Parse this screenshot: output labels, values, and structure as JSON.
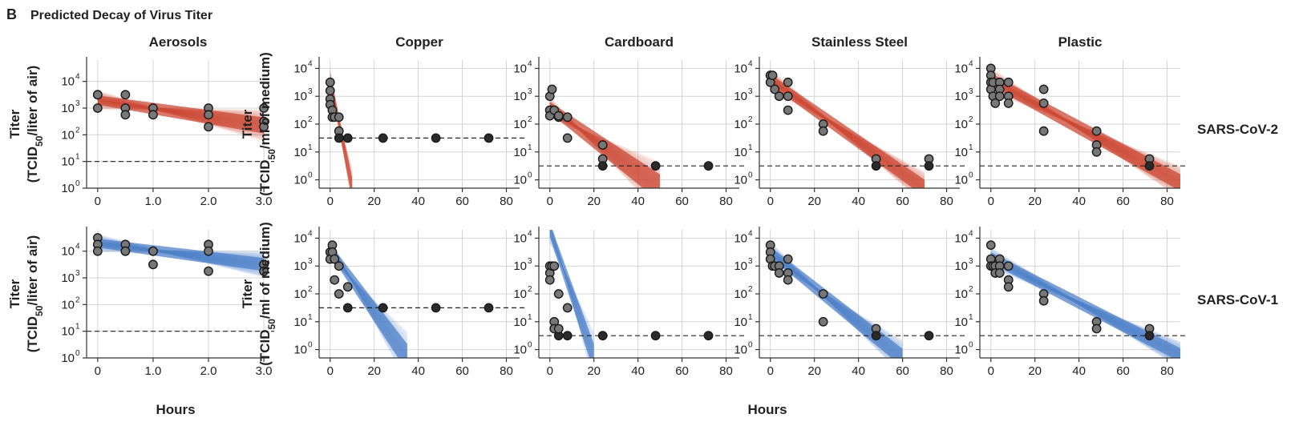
{
  "figure": {
    "panel_letter": "B",
    "title": "Predicted Decay of Virus Titer",
    "x_label": "Hours",
    "colors": {
      "SARS-CoV-2": "#cc4a35",
      "SARS-CoV-1": "#4f82c8",
      "point_fill": "#777777",
      "point_stroke": "#1a1a1a"
    }
  },
  "chart_data": [
    {
      "type": "scatter",
      "row": 0,
      "col": 0,
      "title": "Aerosols",
      "series_name": "SARS-CoV-2",
      "ylabel": "Titer\n(TCID50/liter of air)",
      "xlim": [
        -0.2,
        3.1
      ],
      "xticks": [
        0,
        1,
        2,
        3
      ],
      "xticklabels": [
        "0",
        "1.0",
        "2.0",
        "3.0"
      ],
      "yscale": "log",
      "ylim": [
        0,
        4.8
      ],
      "yticklabels": [
        "10^0",
        "10^1",
        "10^2",
        "10^3",
        "10^4"
      ],
      "lod": 1.0,
      "fit_band": {
        "x": [
          0,
          3
        ],
        "log10_center": [
          3.3,
          2.35
        ],
        "log10_halfwidth": [
          0.32,
          0.55
        ]
      },
      "points": [
        [
          0,
          3.5
        ],
        [
          0,
          3.5
        ],
        [
          0,
          3.0
        ],
        [
          0.5,
          3.5
        ],
        [
          0.5,
          3.0
        ],
        [
          0.5,
          2.75
        ],
        [
          1,
          3.0
        ],
        [
          1,
          2.75
        ],
        [
          2,
          3.0
        ],
        [
          2,
          2.75
        ],
        [
          2,
          2.3
        ],
        [
          3,
          3.0
        ],
        [
          3,
          2.5
        ],
        [
          3,
          2.3
        ]
      ]
    },
    {
      "type": "scatter",
      "row": 0,
      "col": 1,
      "title": "Copper",
      "series_name": "SARS-CoV-2",
      "ylabel": "Titer\n(TCID50/ml of medium)",
      "xlim": [
        -5,
        86
      ],
      "xticks": [
        0,
        20,
        40,
        60,
        80
      ],
      "xticklabels": [
        "0",
        "20",
        "40",
        "60",
        "80"
      ],
      "yscale": "log",
      "ylim": [
        -0.3,
        4.3
      ],
      "yticklabels": [
        "10^0",
        "10^1",
        "10^2",
        "10^3",
        "10^4"
      ],
      "lod": 1.5,
      "fit_band": {
        "x": [
          0,
          10
        ],
        "log10_center": [
          3.6,
          -0.3
        ],
        "log10_halfwidth": [
          0.4,
          0.7
        ]
      },
      "points": [
        [
          0,
          3.5
        ],
        [
          0,
          3.2
        ],
        [
          0,
          2.9
        ],
        [
          0,
          2.7
        ],
        [
          1,
          2.5
        ],
        [
          1,
          2.25
        ],
        [
          2,
          2.25
        ],
        [
          4,
          2.25
        ],
        [
          4,
          1.75
        ],
        [
          4,
          1.5
        ],
        [
          8,
          1.5
        ],
        [
          24,
          1.5
        ],
        [
          48,
          1.5
        ],
        [
          72,
          1.5
        ]
      ]
    },
    {
      "type": "scatter",
      "row": 0,
      "col": 2,
      "title": "Cardboard",
      "series_name": "SARS-CoV-2",
      "ylabel": "",
      "xlim": [
        -5,
        86
      ],
      "xticks": [
        0,
        20,
        40,
        60,
        80
      ],
      "xticklabels": [
        "0",
        "20",
        "40",
        "60",
        "80"
      ],
      "yscale": "log",
      "ylim": [
        -0.3,
        4.3
      ],
      "yticklabels": [
        "10^0",
        "10^1",
        "10^2",
        "10^3",
        "10^4"
      ],
      "lod": 0.5,
      "fit_band": {
        "x": [
          0,
          50
        ],
        "log10_center": [
          2.6,
          -0.3
        ],
        "log10_halfwidth": [
          0.35,
          0.9
        ]
      },
      "points": [
        [
          0,
          3.0
        ],
        [
          0,
          2.5
        ],
        [
          0,
          2.5
        ],
        [
          0,
          2.3
        ],
        [
          1,
          3.25
        ],
        [
          2,
          2.5
        ],
        [
          4,
          2.25
        ],
        [
          4,
          2.3
        ],
        [
          8,
          2.25
        ],
        [
          8,
          1.5
        ],
        [
          24,
          1.25
        ],
        [
          24,
          0.75
        ],
        [
          24,
          0.5
        ],
        [
          48,
          0.5
        ],
        [
          72,
          0.5
        ]
      ]
    },
    {
      "type": "scatter",
      "row": 0,
      "col": 3,
      "title": "Stainless Steel",
      "series_name": "SARS-CoV-2",
      "ylabel": "",
      "xlim": [
        -5,
        86
      ],
      "xticks": [
        0,
        20,
        40,
        60,
        80
      ],
      "xticklabels": [
        "0",
        "20",
        "40",
        "60",
        "80"
      ],
      "yscale": "log",
      "ylim": [
        -0.3,
        4.3
      ],
      "yticklabels": [
        "10^0",
        "10^1",
        "10^2",
        "10^3",
        "10^4"
      ],
      "lod": 0.5,
      "fit_band": {
        "x": [
          0,
          70
        ],
        "log10_center": [
          3.6,
          -0.3
        ],
        "log10_halfwidth": [
          0.35,
          0.55
        ]
      },
      "points": [
        [
          0,
          3.75
        ],
        [
          0,
          3.75
        ],
        [
          0,
          3.5
        ],
        [
          1,
          3.75
        ],
        [
          2,
          3.25
        ],
        [
          4,
          3.0
        ],
        [
          8,
          3.5
        ],
        [
          8,
          3.0
        ],
        [
          8,
          2.5
        ],
        [
          24,
          2.0
        ],
        [
          24,
          1.75
        ],
        [
          48,
          0.75
        ],
        [
          48,
          0.5
        ],
        [
          72,
          0.75
        ],
        [
          72,
          0.5
        ]
      ]
    },
    {
      "type": "scatter",
      "row": 0,
      "col": 4,
      "title": "Plastic",
      "series_name": "SARS-CoV-2",
      "ylabel": "",
      "xlim": [
        -5,
        86
      ],
      "xticks": [
        0,
        20,
        40,
        60,
        80
      ],
      "xticklabels": [
        "0",
        "20",
        "40",
        "60",
        "80"
      ],
      "yscale": "log",
      "ylim": [
        -0.3,
        4.3
      ],
      "yticklabels": [
        "10^0",
        "10^1",
        "10^2",
        "10^3",
        "10^4"
      ],
      "lod": 0.5,
      "fit_band": {
        "x": [
          0,
          86
        ],
        "log10_center": [
          3.6,
          -0.1
        ],
        "log10_halfwidth": [
          0.4,
          0.55
        ]
      },
      "points": [
        [
          0,
          4.0
        ],
        [
          0,
          3.75
        ],
        [
          0,
          3.5
        ],
        [
          0,
          3.25
        ],
        [
          1,
          3.5
        ],
        [
          1,
          3.0
        ],
        [
          2,
          2.75
        ],
        [
          4,
          3.5
        ],
        [
          4,
          3.25
        ],
        [
          4,
          3.0
        ],
        [
          8,
          3.5
        ],
        [
          8,
          3.0
        ],
        [
          8,
          2.75
        ],
        [
          24,
          3.25
        ],
        [
          24,
          2.75
        ],
        [
          24,
          1.75
        ],
        [
          48,
          1.75
        ],
        [
          48,
          1.25
        ],
        [
          48,
          1.0
        ],
        [
          72,
          0.75
        ],
        [
          72,
          0.5
        ]
      ]
    },
    {
      "type": "scatter",
      "row": 1,
      "col": 0,
      "title": "",
      "series_name": "SARS-CoV-1",
      "ylabel": "Titer\n(TCID50/liter of air)",
      "xlim": [
        -0.2,
        3.1
      ],
      "xticks": [
        0,
        1,
        2,
        3
      ],
      "xticklabels": [
        "0",
        "1.0",
        "2.0",
        "3.0"
      ],
      "yscale": "log",
      "ylim": [
        0,
        4.8
      ],
      "yticklabels": [
        "10^0",
        "10^1",
        "10^2",
        "10^3",
        "10^4"
      ],
      "lod": 1.0,
      "fit_band": {
        "x": [
          0,
          3
        ],
        "log10_center": [
          4.3,
          3.5
        ],
        "log10_halfwidth": [
          0.3,
          0.45
        ]
      },
      "points": [
        [
          0,
          4.5
        ],
        [
          0,
          4.25
        ],
        [
          0,
          4.0
        ],
        [
          0.5,
          4.25
        ],
        [
          0.5,
          4.0
        ],
        [
          0.5,
          4.0
        ],
        [
          1,
          4.0
        ],
        [
          1,
          4.0
        ],
        [
          1,
          3.5
        ],
        [
          2,
          4.25
        ],
        [
          2,
          4.0
        ],
        [
          2,
          3.25
        ],
        [
          3,
          3.5
        ],
        [
          3,
          3.5
        ],
        [
          3,
          3.25
        ]
      ]
    },
    {
      "type": "scatter",
      "row": 1,
      "col": 1,
      "title": "",
      "series_name": "SARS-CoV-1",
      "ylabel": "Titer\n(TCID50/ml of medium)",
      "xlim": [
        -5,
        86
      ],
      "xticks": [
        0,
        20,
        40,
        60,
        80
      ],
      "xticklabels": [
        "0",
        "20",
        "40",
        "60",
        "80"
      ],
      "yscale": "log",
      "ylim": [
        -0.3,
        4.3
      ],
      "yticklabels": [
        "10^0",
        "10^1",
        "10^2",
        "10^3",
        "10^4"
      ],
      "lod": 1.5,
      "fit_band": {
        "x": [
          0,
          35
        ],
        "log10_center": [
          3.6,
          -0.3
        ],
        "log10_halfwidth": [
          0.35,
          0.9
        ]
      },
      "points": [
        [
          0,
          3.5
        ],
        [
          0,
          3.25
        ],
        [
          1,
          3.75
        ],
        [
          1,
          3.5
        ],
        [
          2,
          3.25
        ],
        [
          2,
          2.5
        ],
        [
          4,
          3.0
        ],
        [
          4,
          2.0
        ],
        [
          8,
          2.25
        ],
        [
          8,
          1.5
        ],
        [
          24,
          1.5
        ],
        [
          48,
          1.5
        ],
        [
          72,
          1.5
        ]
      ]
    },
    {
      "type": "scatter",
      "row": 1,
      "col": 2,
      "title": "",
      "series_name": "SARS-CoV-1",
      "ylabel": "",
      "xlim": [
        -5,
        86
      ],
      "xticks": [
        0,
        20,
        40,
        60,
        80
      ],
      "xticklabels": [
        "0",
        "20",
        "40",
        "60",
        "80"
      ],
      "yscale": "log",
      "ylim": [
        -0.3,
        4.3
      ],
      "yticklabels": [
        "10^0",
        "10^1",
        "10^2",
        "10^3",
        "10^4"
      ],
      "lod": 0.5,
      "fit_band": {
        "x": [
          0,
          20
        ],
        "log10_center": [
          4.3,
          -0.3
        ],
        "log10_halfwidth": [
          0.45,
          0.9
        ]
      },
      "points": [
        [
          0,
          3.0
        ],
        [
          0,
          2.75
        ],
        [
          0,
          2.5
        ],
        [
          1,
          3.0
        ],
        [
          2,
          3.0
        ],
        [
          2,
          1.0
        ],
        [
          2,
          0.75
        ],
        [
          4,
          2.0
        ],
        [
          4,
          0.5
        ],
        [
          4,
          0.75
        ],
        [
          8,
          1.5
        ],
        [
          8,
          0.5
        ],
        [
          24,
          0.5
        ],
        [
          48,
          0.5
        ],
        [
          72,
          0.5
        ]
      ]
    },
    {
      "type": "scatter",
      "row": 1,
      "col": 3,
      "title": "",
      "series_name": "SARS-CoV-1",
      "ylabel": "",
      "xlim": [
        -5,
        86
      ],
      "xticks": [
        0,
        20,
        40,
        60,
        80
      ],
      "xticklabels": [
        "0",
        "20",
        "40",
        "60",
        "80"
      ],
      "yscale": "log",
      "ylim": [
        -0.3,
        4.3
      ],
      "yticklabels": [
        "10^0",
        "10^1",
        "10^2",
        "10^3",
        "10^4"
      ],
      "lod": 0.5,
      "fit_band": {
        "x": [
          0,
          60
        ],
        "log10_center": [
          3.5,
          -0.3
        ],
        "log10_halfwidth": [
          0.35,
          0.6
        ]
      },
      "points": [
        [
          0,
          3.75
        ],
        [
          0,
          3.5
        ],
        [
          0,
          3.25
        ],
        [
          1,
          3.0
        ],
        [
          2,
          3.0
        ],
        [
          4,
          3.0
        ],
        [
          4,
          2.75
        ],
        [
          8,
          3.25
        ],
        [
          8,
          2.75
        ],
        [
          8,
          2.5
        ],
        [
          24,
          2.0
        ],
        [
          24,
          1.0
        ],
        [
          48,
          0.75
        ],
        [
          48,
          0.5
        ],
        [
          72,
          0.5
        ]
      ]
    },
    {
      "type": "scatter",
      "row": 1,
      "col": 4,
      "title": "",
      "series_name": "SARS-CoV-1",
      "ylabel": "",
      "xlim": [
        -5,
        86
      ],
      "xticks": [
        0,
        20,
        40,
        60,
        80
      ],
      "xticklabels": [
        "0",
        "20",
        "40",
        "60",
        "80"
      ],
      "yscale": "log",
      "ylim": [
        -0.3,
        4.3
      ],
      "yticklabels": [
        "10^0",
        "10^1",
        "10^2",
        "10^3",
        "10^4"
      ],
      "lod": 0.5,
      "fit_band": {
        "x": [
          0,
          86
        ],
        "log10_center": [
          3.3,
          -0.2
        ],
        "log10_halfwidth": [
          0.35,
          0.45
        ]
      },
      "points": [
        [
          0,
          3.75
        ],
        [
          0,
          3.25
        ],
        [
          0,
          3.0
        ],
        [
          1,
          3.0
        ],
        [
          2,
          3.0
        ],
        [
          2,
          2.75
        ],
        [
          4,
          3.25
        ],
        [
          4,
          3.0
        ],
        [
          4,
          2.75
        ],
        [
          8,
          3.0
        ],
        [
          8,
          2.5
        ],
        [
          8,
          2.25
        ],
        [
          24,
          2.0
        ],
        [
          24,
          1.75
        ],
        [
          48,
          1.0
        ],
        [
          48,
          0.75
        ],
        [
          72,
          0.75
        ],
        [
          72,
          0.5
        ]
      ]
    }
  ],
  "row_labels": [
    "SARS-CoV-2",
    "SARS-CoV-1"
  ]
}
